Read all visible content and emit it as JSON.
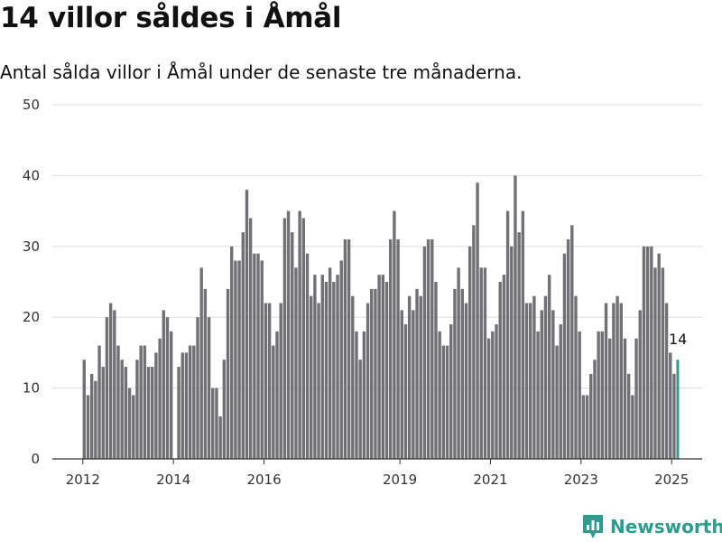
{
  "title": "14 villor såldes i Åmål",
  "subtitle": "Antal sålda villor i Åmål under de senaste tre månaderna.",
  "brand": "Newsworthy",
  "colors": {
    "bar": "#717075",
    "highlight": "#2a9d8f",
    "grid": "#dddddd",
    "axis": "#333333"
  },
  "chart_data": {
    "type": "bar",
    "title": "14 villor såldes i Åmål",
    "xlabel": "",
    "ylabel": "",
    "ylim": [
      0,
      50
    ],
    "yticks": [
      0,
      10,
      20,
      30,
      40,
      50
    ],
    "xticks": [
      "2012",
      "2014",
      "2016",
      "2019",
      "2021",
      "2023",
      "2025"
    ],
    "grid": true,
    "highlight_last": true,
    "last_label": "14",
    "values": [
      14,
      9,
      12,
      11,
      16,
      13,
      20,
      22,
      21,
      16,
      14,
      13,
      10,
      9,
      14,
      16,
      16,
      13,
      13,
      15,
      17,
      21,
      20,
      18,
      null,
      13,
      15,
      15,
      16,
      16,
      20,
      27,
      24,
      20,
      10,
      10,
      6,
      14,
      24,
      30,
      28,
      28,
      32,
      38,
      34,
      29,
      29,
      28,
      22,
      22,
      16,
      18,
      22,
      34,
      35,
      32,
      27,
      35,
      34,
      29,
      23,
      26,
      22,
      26,
      25,
      27,
      25,
      26,
      28,
      31,
      31,
      23,
      18,
      14,
      18,
      22,
      24,
      24,
      26,
      26,
      25,
      31,
      35,
      31,
      21,
      19,
      23,
      21,
      24,
      23,
      30,
      31,
      31,
      25,
      18,
      16,
      16,
      19,
      24,
      27,
      24,
      22,
      30,
      33,
      39,
      27,
      27,
      17,
      18,
      19,
      25,
      26,
      35,
      30,
      40,
      32,
      35,
      22,
      22,
      23,
      18,
      21,
      23,
      26,
      21,
      16,
      19,
      29,
      31,
      33,
      23,
      18,
      9,
      9,
      12,
      14,
      18,
      18,
      22,
      17,
      22,
      23,
      22,
      17,
      12,
      9,
      17,
      21,
      30,
      30,
      30,
      27,
      29,
      27,
      22,
      15,
      12,
      14
    ]
  }
}
